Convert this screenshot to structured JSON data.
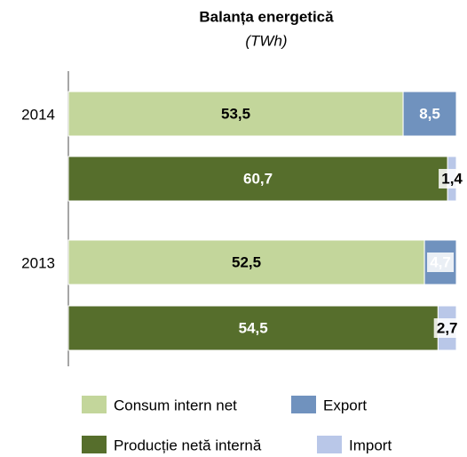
{
  "chart_data": {
    "type": "bar",
    "orientation": "horizontal",
    "stacking": "percent",
    "title": "Balanța energetică",
    "subtitle": "(TWh)",
    "categories": [
      "2014",
      null,
      "2013",
      null
    ],
    "series": [
      {
        "name": "Consum intern net",
        "color": "#c3d69b",
        "label_color": "#000000",
        "values": [
          53.5,
          null,
          52.5,
          null
        ],
        "value_labels": [
          "53,5",
          null,
          "52,5",
          null
        ]
      },
      {
        "name": "Export",
        "color": "#7092be",
        "label_color": "#ffffff",
        "values": [
          8.5,
          null,
          4.7,
          null
        ],
        "value_labels": [
          "8,5",
          null,
          "4,7",
          null
        ]
      },
      {
        "name": "Producție netă internă",
        "color": "#566e2c",
        "label_color": "#ffffff",
        "values": [
          null,
          60.7,
          null,
          54.5
        ],
        "value_labels": [
          null,
          "60,7",
          null,
          "54,5"
        ]
      },
      {
        "name": "Import",
        "color": "#b9c7e8",
        "label_color": "#000000",
        "values": [
          null,
          1.4,
          null,
          2.7
        ],
        "value_labels": [
          null,
          "1,4",
          null,
          "2,7"
        ]
      }
    ]
  }
}
